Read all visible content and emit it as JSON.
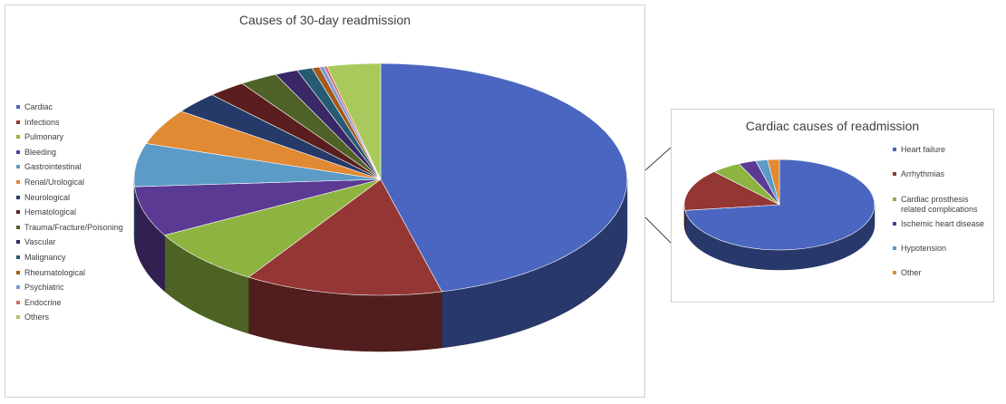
{
  "chart_data": [
    {
      "type": "pie3d",
      "title": "Causes of 30-day readmission",
      "categories": [
        "Cardiac",
        "Infections",
        "Pulmonary",
        "Bleeding",
        "Gastrointestinal",
        "Renal/Urological",
        "Neurological",
        "Hematological",
        "Trauma/Fracture/Poisoning",
        "Vascular",
        "Malignancy",
        "Rheumatological",
        "Psychiatric",
        "Endocrine",
        "Others"
      ],
      "values": [
        46,
        13,
        8,
        7,
        6,
        5,
        3,
        2.5,
        2.5,
        1.5,
        1,
        0.5,
        0.3,
        0.2,
        3.5
      ],
      "colors": [
        "#4a66c0",
        "#943634",
        "#8db440",
        "#5b3a93",
        "#5b9bc6",
        "#e08a34",
        "#263a6a",
        "#5a1e1e",
        "#4f6228",
        "#3a2766",
        "#265b73",
        "#a35a1a",
        "#7f97d6",
        "#d46c6a",
        "#a9c95c"
      ]
    },
    {
      "type": "pie3d",
      "title": "Cardiac causes of readmission",
      "categories": [
        "Heart failure",
        "Arrhythmias",
        "Cardiac prosthesis related complications",
        "Ischemic heart disease",
        "Hypotension",
        "Other"
      ],
      "values": [
        73,
        15,
        5,
        3,
        2,
        2
      ],
      "colors": [
        "#4a66c0",
        "#943634",
        "#8db440",
        "#5b3a93",
        "#5b9bc6",
        "#e08a34"
      ]
    }
  ]
}
